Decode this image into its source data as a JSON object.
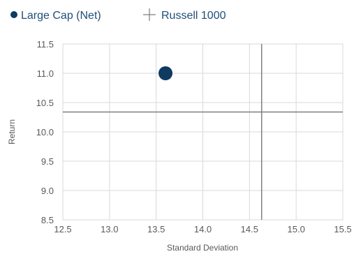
{
  "chart_data": {
    "type": "scatter",
    "legend_position": "top-left",
    "grid": true,
    "xlabel": "Standard Deviation",
    "ylabel": "Return",
    "xlim": [
      12.5,
      15.5
    ],
    "ylim": [
      8.5,
      11.5
    ],
    "x_ticks": [
      "12.5",
      "13.0",
      "13.5",
      "14.0",
      "14.5",
      "15.0",
      "15.5"
    ],
    "y_ticks": [
      "11.5",
      "11.0",
      "10.5",
      "10.0",
      "9.5",
      "9.0",
      "8.5"
    ],
    "series": [
      {
        "name": "Large Cap (Net)",
        "marker": "circle",
        "color": "#0f3a62",
        "x": 13.6,
        "y": 11.0
      },
      {
        "name": "Russell 1000",
        "marker": "crosshair",
        "color": "#7f7f7f",
        "x": 14.63,
        "y": 10.34
      }
    ],
    "colors": {
      "grid": "#d9d9d9",
      "legend_text": "#1f4e79",
      "axis_text": "#595959"
    }
  }
}
